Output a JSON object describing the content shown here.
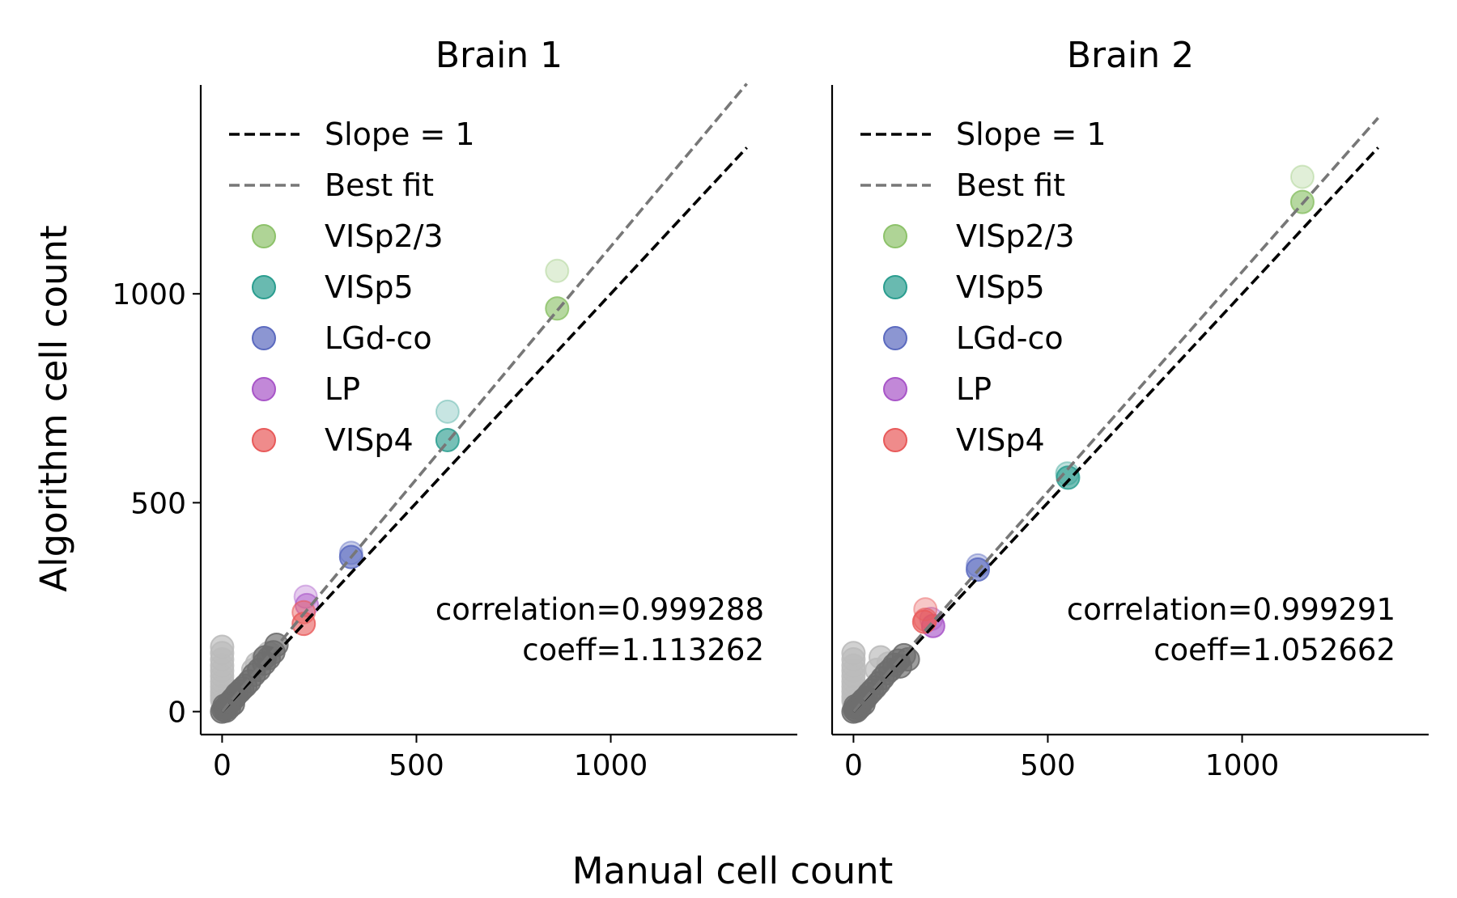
{
  "figure": {
    "xlabel": "Manual cell count",
    "ylabel": "Algorithm cell count"
  },
  "legend": {
    "placement": "upper-left",
    "entries": [
      {
        "label": "Slope = 1",
        "kind": "line",
        "color": "#000000",
        "dashed": true
      },
      {
        "label": "Best fit",
        "kind": "line",
        "color": "#777777",
        "dashed": true
      },
      {
        "label": "VISp2/3",
        "kind": "marker",
        "color": "#8dc26a"
      },
      {
        "label": "VISp5",
        "kind": "marker",
        "color": "#2a9d8f"
      },
      {
        "label": "LGd-co",
        "kind": "marker",
        "color": "#5b6abf"
      },
      {
        "label": "LP",
        "kind": "marker",
        "color": "#a855c8"
      },
      {
        "label": "VISp4",
        "kind": "marker",
        "color": "#e85a5a"
      }
    ]
  },
  "chart_data": [
    {
      "type": "scatter",
      "title": "Brain 1",
      "xlabel": "Manual cell count",
      "ylabel": "Algorithm cell count",
      "xlim": [
        -55,
        1480
      ],
      "ylim": [
        -55,
        1500
      ],
      "xticks": [
        "0",
        "500",
        "1000"
      ],
      "yticks": [
        "0",
        "500",
        "1000"
      ],
      "annotation": [
        "correlation=0.999288",
        "coeff=1.113262"
      ],
      "lines": [
        {
          "name": "Slope = 1",
          "slope": 1.0,
          "x_range": [
            0,
            1350
          ],
          "color": "#000000"
        },
        {
          "name": "Best fit",
          "slope": 1.113262,
          "x_range": [
            0,
            1350
          ],
          "color": "#777777"
        }
      ],
      "series": [
        {
          "name": "VISp2/3",
          "color": "#8dc26a",
          "points": [
            [
              862,
              1055,
              0.35
            ],
            [
              862,
              965,
              0.85
            ]
          ]
        },
        {
          "name": "VISp5",
          "color": "#2a9d8f",
          "points": [
            [
              580,
              718,
              0.35
            ],
            [
              580,
              650,
              0.85
            ]
          ]
        },
        {
          "name": "LGd-co",
          "color": "#5b6abf",
          "points": [
            [
              332,
              380,
              0.45
            ],
            [
              332,
              370,
              0.85
            ]
          ]
        },
        {
          "name": "LP",
          "color": "#a855c8",
          "points": [
            [
              215,
              275,
              0.4
            ],
            [
              218,
              255,
              0.6
            ]
          ]
        },
        {
          "name": "VISp4",
          "color": "#e85a5a",
          "points": [
            [
              210,
              238,
              0.6
            ],
            [
              210,
              210,
              0.8
            ]
          ]
        },
        {
          "name": "other-light",
          "color": "#bbbbbb",
          "points": [
            [
              0,
              155,
              0.9
            ],
            [
              0,
              140,
              0.9
            ],
            [
              0,
              125,
              0.9
            ],
            [
              0,
              110,
              0.9
            ],
            [
              0,
              98,
              0.9
            ],
            [
              0,
              85,
              0.9
            ],
            [
              0,
              72,
              0.9
            ],
            [
              0,
              60,
              0.9
            ],
            [
              0,
              48,
              0.9
            ],
            [
              0,
              38,
              0.9
            ],
            [
              0,
              28,
              0.9
            ],
            [
              2,
              20,
              0.9
            ],
            [
              4,
              12,
              0.9
            ],
            [
              6,
              6,
              0.9
            ],
            [
              120,
              140,
              0.9
            ],
            [
              105,
              125,
              0.9
            ],
            [
              90,
              115,
              0.9
            ],
            [
              80,
              100,
              0.9
            ]
          ]
        },
        {
          "name": "other-dark",
          "color": "#6e6e6e",
          "points": [
            [
              0,
              0,
              0.9
            ],
            [
              4,
              4,
              0.9
            ],
            [
              8,
              9,
              0.9
            ],
            [
              12,
              12,
              0.9
            ],
            [
              16,
              18,
              0.9
            ],
            [
              20,
              22,
              0.9
            ],
            [
              26,
              28,
              0.9
            ],
            [
              32,
              34,
              0.9
            ],
            [
              38,
              42,
              0.9
            ],
            [
              45,
              48,
              0.9
            ],
            [
              52,
              55,
              0.9
            ],
            [
              60,
              62,
              0.9
            ],
            [
              70,
              72,
              0.9
            ],
            [
              82,
              88,
              0.9
            ],
            [
              95,
              100,
              0.9
            ],
            [
              108,
              115,
              0.9
            ],
            [
              120,
              128,
              0.9
            ],
            [
              132,
              142,
              0.9
            ],
            [
              140,
              160,
              0.9
            ],
            [
              110,
              130,
              0.9
            ],
            [
              10,
              2,
              0.9
            ],
            [
              18,
              10,
              0.9
            ],
            [
              28,
              18,
              0.9
            ],
            [
              6,
              14,
              0.9
            ]
          ]
        }
      ]
    },
    {
      "type": "scatter",
      "title": "Brain 2",
      "xlabel": "Manual cell count",
      "ylabel": "Algorithm cell count",
      "xlim": [
        -55,
        1480
      ],
      "ylim": [
        -55,
        1500
      ],
      "xticks": [
        "0",
        "500",
        "1000"
      ],
      "yticks": [
        "0",
        "500",
        "1000"
      ],
      "annotation": [
        "correlation=0.999291",
        "coeff=1.052662"
      ],
      "lines": [
        {
          "name": "Slope = 1",
          "slope": 1.0,
          "x_range": [
            0,
            1350
          ],
          "color": "#000000"
        },
        {
          "name": "Best fit",
          "slope": 1.052662,
          "x_range": [
            0,
            1350
          ],
          "color": "#777777"
        }
      ],
      "series": [
        {
          "name": "VISp2/3",
          "color": "#8dc26a",
          "points": [
            [
              1155,
              1280,
              0.35
            ],
            [
              1155,
              1220,
              0.85
            ]
          ]
        },
        {
          "name": "VISp5",
          "color": "#2a9d8f",
          "points": [
            [
              550,
              570,
              0.4
            ],
            [
              552,
              560,
              0.85
            ]
          ]
        },
        {
          "name": "LGd-co",
          "color": "#5b6abf",
          "points": [
            [
              320,
              350,
              0.45
            ],
            [
              320,
              340,
              0.85
            ]
          ]
        },
        {
          "name": "LP",
          "color": "#a855c8",
          "points": [
            [
              205,
              205,
              0.85
            ],
            [
              200,
              222,
              0.45
            ]
          ]
        },
        {
          "name": "VISp4",
          "color": "#e85a5a",
          "points": [
            [
              185,
              245,
              0.45
            ],
            [
              185,
              220,
              0.6
            ],
            [
              182,
              215,
              0.8
            ]
          ]
        },
        {
          "name": "other-light",
          "color": "#bbbbbb",
          "points": [
            [
              0,
              140,
              0.9
            ],
            [
              0,
              125,
              0.9
            ],
            [
              0,
              110,
              0.9
            ],
            [
              0,
              98,
              0.9
            ],
            [
              0,
              85,
              0.9
            ],
            [
              0,
              72,
              0.9
            ],
            [
              0,
              60,
              0.9
            ],
            [
              0,
              48,
              0.9
            ],
            [
              0,
              36,
              0.9
            ],
            [
              0,
              26,
              0.9
            ],
            [
              2,
              18,
              0.9
            ],
            [
              5,
              10,
              0.9
            ],
            [
              70,
              130,
              0.9
            ],
            [
              90,
              115,
              0.9
            ],
            [
              60,
              100,
              0.9
            ]
          ]
        },
        {
          "name": "other-dark",
          "color": "#6e6e6e",
          "points": [
            [
              0,
              0,
              0.9
            ],
            [
              4,
              4,
              0.9
            ],
            [
              8,
              9,
              0.9
            ],
            [
              12,
              12,
              0.9
            ],
            [
              16,
              17,
              0.9
            ],
            [
              20,
              22,
              0.9
            ],
            [
              26,
              28,
              0.9
            ],
            [
              32,
              33,
              0.9
            ],
            [
              40,
              42,
              0.9
            ],
            [
              48,
              50,
              0.9
            ],
            [
              56,
              58,
              0.9
            ],
            [
              65,
              68,
              0.9
            ],
            [
              75,
              80,
              0.9
            ],
            [
              85,
              92,
              0.9
            ],
            [
              95,
              100,
              0.9
            ],
            [
              105,
              112,
              0.9
            ],
            [
              115,
              122,
              0.9
            ],
            [
              130,
              135,
              0.9
            ],
            [
              140,
              125,
              0.9
            ],
            [
              120,
              108,
              0.9
            ],
            [
              8,
              2,
              0.9
            ],
            [
              16,
              10,
              0.9
            ],
            [
              26,
              18,
              0.9
            ],
            [
              5,
              13,
              0.9
            ]
          ]
        }
      ]
    }
  ]
}
